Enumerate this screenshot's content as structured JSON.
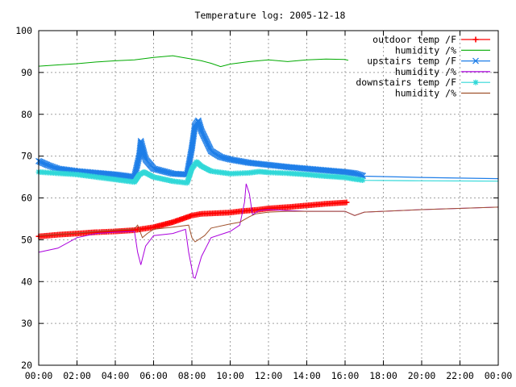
{
  "chart_data": {
    "type": "line",
    "title": "Temperature log: 2005-12-18",
    "xlabel": "",
    "ylabel": "",
    "xlim": [
      "00:00",
      "24:00"
    ],
    "ylim": [
      20,
      100
    ],
    "x_ticks": [
      "00:00",
      "02:00",
      "04:00",
      "06:00",
      "08:00",
      "10:00",
      "12:00",
      "14:00",
      "16:00",
      "18:00",
      "20:00",
      "22:00",
      "00:00"
    ],
    "y_ticks": [
      "20",
      "30",
      "40",
      "50",
      "60",
      "70",
      "80",
      "90",
      "100"
    ],
    "grid": true,
    "legend_position": "top-right",
    "series": [
      {
        "name": "outdoor temp /F",
        "color": "#ff0000",
        "marker": "plus",
        "points": [
          [
            "00:00",
            50.8
          ],
          [
            "01:00",
            51.2
          ],
          [
            "02:00",
            51.5
          ],
          [
            "03:00",
            51.8
          ],
          [
            "04:00",
            52.0
          ],
          [
            "05:00",
            52.3
          ],
          [
            "06:00",
            53.0
          ],
          [
            "07:00",
            54.2
          ],
          [
            "07:30",
            55.0
          ],
          [
            "08:00",
            55.8
          ],
          [
            "08:30",
            56.2
          ],
          [
            "09:00",
            56.3
          ],
          [
            "09:30",
            56.4
          ],
          [
            "10:00",
            56.5
          ],
          [
            "10:30",
            56.8
          ],
          [
            "11:00",
            57.0
          ],
          [
            "11:30",
            57.2
          ],
          [
            "12:00",
            57.5
          ],
          [
            "13:00",
            57.8
          ],
          [
            "14:00",
            58.2
          ],
          [
            "15:00",
            58.6
          ],
          [
            "16:00",
            58.9
          ],
          [
            "16:10",
            59.0
          ]
        ]
      },
      {
        "name": "humidity /%",
        "color": "#00aa00",
        "marker": "none",
        "points": [
          [
            "00:00",
            91.5
          ],
          [
            "01:00",
            91.8
          ],
          [
            "02:00",
            92.1
          ],
          [
            "03:00",
            92.5
          ],
          [
            "04:00",
            92.8
          ],
          [
            "05:00",
            93.0
          ],
          [
            "06:00",
            93.6
          ],
          [
            "07:00",
            94.0
          ],
          [
            "07:30",
            93.6
          ],
          [
            "08:00",
            93.2
          ],
          [
            "08:30",
            92.8
          ],
          [
            "09:00",
            92.2
          ],
          [
            "09:30",
            91.4
          ],
          [
            "10:00",
            92.0
          ],
          [
            "11:00",
            92.6
          ],
          [
            "12:00",
            93.0
          ],
          [
            "13:00",
            92.6
          ],
          [
            "14:00",
            93.0
          ],
          [
            "15:00",
            93.2
          ],
          [
            "16:00",
            93.1
          ],
          [
            "16:10",
            92.9
          ]
        ]
      },
      {
        "name": "upstairs temp /F",
        "color": "#1e7ee8",
        "marker": "x",
        "points": [
          [
            "00:00",
            68.8
          ],
          [
            "00:30",
            67.8
          ],
          [
            "01:00",
            67.0
          ],
          [
            "02:00",
            66.4
          ],
          [
            "03:00",
            66.0
          ],
          [
            "04:00",
            65.6
          ],
          [
            "05:00",
            65.0
          ],
          [
            "05:15",
            70.0
          ],
          [
            "05:20",
            73.6
          ],
          [
            "05:35",
            69.2
          ],
          [
            "06:00",
            67.0
          ],
          [
            "07:00",
            65.8
          ],
          [
            "07:45",
            65.6
          ],
          [
            "08:00",
            72.0
          ],
          [
            "08:10",
            77.4
          ],
          [
            "08:20",
            78.5
          ],
          [
            "08:30",
            76.0
          ],
          [
            "09:00",
            71.2
          ],
          [
            "09:30",
            69.8
          ],
          [
            "10:00",
            69.2
          ],
          [
            "11:00",
            68.4
          ],
          [
            "12:00",
            67.9
          ],
          [
            "13:00",
            67.4
          ],
          [
            "14:00",
            67.0
          ],
          [
            "15:00",
            66.6
          ],
          [
            "16:00",
            66.2
          ],
          [
            "16:30",
            65.9
          ],
          [
            "17:00",
            65.2
          ],
          [
            "20:00",
            64.9
          ],
          [
            "24:00",
            64.6
          ]
        ]
      },
      {
        "name": "humidity /%",
        "color": "#aa00dd",
        "marker": "none",
        "points": [
          [
            "00:00",
            47.0
          ],
          [
            "01:00",
            48.0
          ],
          [
            "02:00",
            50.5
          ],
          [
            "03:00",
            51.5
          ],
          [
            "04:00",
            51.8
          ],
          [
            "05:00",
            52.0
          ],
          [
            "05:10",
            47.0
          ],
          [
            "05:20",
            44.0
          ],
          [
            "05:35",
            48.5
          ],
          [
            "06:00",
            51.0
          ],
          [
            "07:00",
            51.5
          ],
          [
            "07:40",
            52.5
          ],
          [
            "07:50",
            47.0
          ],
          [
            "08:05",
            41.0
          ],
          [
            "08:10",
            40.8
          ],
          [
            "08:30",
            46.0
          ],
          [
            "09:00",
            50.5
          ],
          [
            "10:00",
            52.0
          ],
          [
            "10:30",
            53.5
          ],
          [
            "10:45",
            59.0
          ],
          [
            "10:50",
            63.4
          ],
          [
            "11:00",
            61.0
          ],
          [
            "11:10",
            56.0
          ],
          [
            "11:30",
            57.0
          ],
          [
            "12:00",
            57.2
          ],
          [
            "13:00",
            57.0
          ],
          [
            "14:00",
            56.8
          ],
          [
            "15:00",
            56.8
          ],
          [
            "16:00",
            56.8
          ],
          [
            "16:30",
            55.8
          ],
          [
            "17:00",
            56.6
          ],
          [
            "20:00",
            57.2
          ],
          [
            "24:00",
            57.8
          ]
        ]
      },
      {
        "name": "downstairs temp /F",
        "color": "#30d8d8",
        "marker": "star",
        "points": [
          [
            "00:00",
            66.2
          ],
          [
            "02:00",
            65.6
          ],
          [
            "04:00",
            64.4
          ],
          [
            "05:00",
            63.8
          ],
          [
            "05:15",
            65.5
          ],
          [
            "05:30",
            66.2
          ],
          [
            "06:00",
            65.0
          ],
          [
            "07:00",
            64.0
          ],
          [
            "07:45",
            63.6
          ],
          [
            "08:00",
            67.0
          ],
          [
            "08:15",
            68.6
          ],
          [
            "08:30",
            67.6
          ],
          [
            "09:00",
            66.4
          ],
          [
            "10:00",
            65.8
          ],
          [
            "11:00",
            66.0
          ],
          [
            "11:30",
            66.3
          ],
          [
            "12:00",
            66.1
          ],
          [
            "13:00",
            65.9
          ],
          [
            "14:00",
            65.6
          ],
          [
            "15:00",
            65.2
          ],
          [
            "16:00",
            64.9
          ],
          [
            "16:30",
            64.5
          ],
          [
            "17:00",
            64.2
          ],
          [
            "20:00",
            64.1
          ],
          [
            "24:00",
            64.0
          ]
        ]
      },
      {
        "name": "humidity /%",
        "color": "#a0522d",
        "marker": "none",
        "points": [
          [
            "00:00",
            51.0
          ],
          [
            "01:00",
            51.3
          ],
          [
            "02:00",
            51.6
          ],
          [
            "03:00",
            52.0
          ],
          [
            "04:00",
            52.3
          ],
          [
            "05:00",
            52.6
          ],
          [
            "05:10",
            53.5
          ],
          [
            "05:25",
            50.5
          ],
          [
            "05:40",
            51.5
          ],
          [
            "06:00",
            52.5
          ],
          [
            "07:00",
            53.0
          ],
          [
            "07:50",
            53.5
          ],
          [
            "08:00",
            50.5
          ],
          [
            "08:10",
            49.5
          ],
          [
            "08:40",
            51.0
          ],
          [
            "09:00",
            52.8
          ],
          [
            "10:00",
            53.8
          ],
          [
            "10:30",
            54.2
          ],
          [
            "11:00",
            55.5
          ],
          [
            "11:20",
            56.2
          ],
          [
            "12:00",
            56.6
          ],
          [
            "13:00",
            56.8
          ],
          [
            "14:00",
            56.8
          ],
          [
            "15:00",
            56.8
          ],
          [
            "16:00",
            56.8
          ],
          [
            "16:30",
            55.8
          ],
          [
            "17:00",
            56.6
          ],
          [
            "20:00",
            57.2
          ],
          [
            "24:00",
            57.8
          ]
        ]
      }
    ]
  }
}
